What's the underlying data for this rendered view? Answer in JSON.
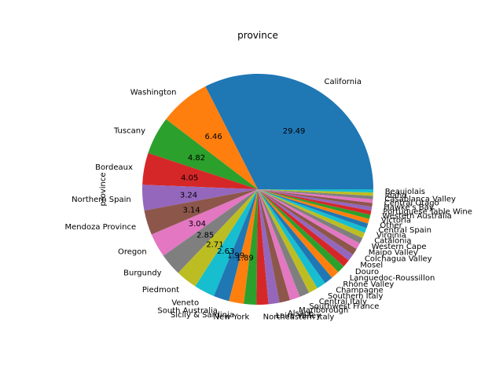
{
  "chart_data": {
    "type": "pie",
    "title": "province",
    "ylabel": "province",
    "slice_colors": [
      "#1f77b4",
      "#ff7f0e",
      "#2ca02c",
      "#d62728",
      "#9467bd",
      "#8c564b",
      "#e377c2",
      "#7f7f7f",
      "#bcbd22",
      "#17becf"
    ],
    "slices": [
      {
        "label": "California",
        "value": 29.49,
        "pct_label": "29.49"
      },
      {
        "label": "Washington",
        "value": 6.46,
        "pct_label": "6.46"
      },
      {
        "label": "Tuscany",
        "value": 4.82,
        "pct_label": "4.82"
      },
      {
        "label": "Bordeaux",
        "value": 4.05,
        "pct_label": "4.05"
      },
      {
        "label": "Northern Spain",
        "value": 3.24,
        "pct_label": "3.24"
      },
      {
        "label": "Mendoza Province",
        "value": 3.14,
        "pct_label": "3.14"
      },
      {
        "label": "Oregon",
        "value": 3.04,
        "pct_label": "3.04"
      },
      {
        "label": "Burgundy",
        "value": 2.85,
        "pct_label": "2.85"
      },
      {
        "label": "Piedmont",
        "value": 2.71,
        "pct_label": "2.71"
      },
      {
        "label": "Veneto",
        "value": 2.63,
        "pct_label": "2.63"
      },
      {
        "label": "South Australia",
        "value": 1.99,
        "pct_label": "1.99"
      },
      {
        "label": "Sicily & Sardinia",
        "value": 1.89,
        "pct_label": "1.89"
      },
      {
        "label": "New York",
        "value": 1.6
      },
      {
        "label": "Northeastern Italy",
        "value": 1.5
      },
      {
        "label": "Loire Valley",
        "value": 1.4
      },
      {
        "label": "Alsace",
        "value": 1.35
      },
      {
        "label": "Marlborough",
        "value": 1.3
      },
      {
        "label": "Southwest France",
        "value": 1.25
      },
      {
        "label": "Central Italy",
        "value": 1.2
      },
      {
        "label": "Southern Italy",
        "value": 1.15
      },
      {
        "label": "Champagne",
        "value": 1.1
      },
      {
        "label": "Rhône Valley",
        "value": 1.05
      },
      {
        "label": "Languedoc-Roussillon",
        "value": 1.0
      },
      {
        "label": "Douro",
        "value": 0.95
      },
      {
        "label": "Mosel",
        "value": 0.9
      },
      {
        "label": "Colchagua Valley",
        "value": 0.85
      },
      {
        "label": "Maipo Valley",
        "value": 0.8
      },
      {
        "label": "Western Cape",
        "value": 0.75
      },
      {
        "label": "Catalonia",
        "value": 0.7
      },
      {
        "label": "Virginia",
        "value": 0.65
      },
      {
        "label": "Central Spain",
        "value": 0.6
      },
      {
        "label": "Other",
        "value": 0.58
      },
      {
        "label": "Victoria",
        "value": 0.55
      },
      {
        "label": "Western Australia",
        "value": 0.52
      },
      {
        "label": "Portuguese Table Wine",
        "value": 0.5
      },
      {
        "label": "Hawke's Bay",
        "value": 0.48
      },
      {
        "label": "Central Otago",
        "value": 0.46
      },
      {
        "label": "Casablanca Valley",
        "value": 0.44
      },
      {
        "label": "Idaho",
        "value": 0.42
      },
      {
        "label": "Beaujolais",
        "value": 0.4
      }
    ]
  }
}
